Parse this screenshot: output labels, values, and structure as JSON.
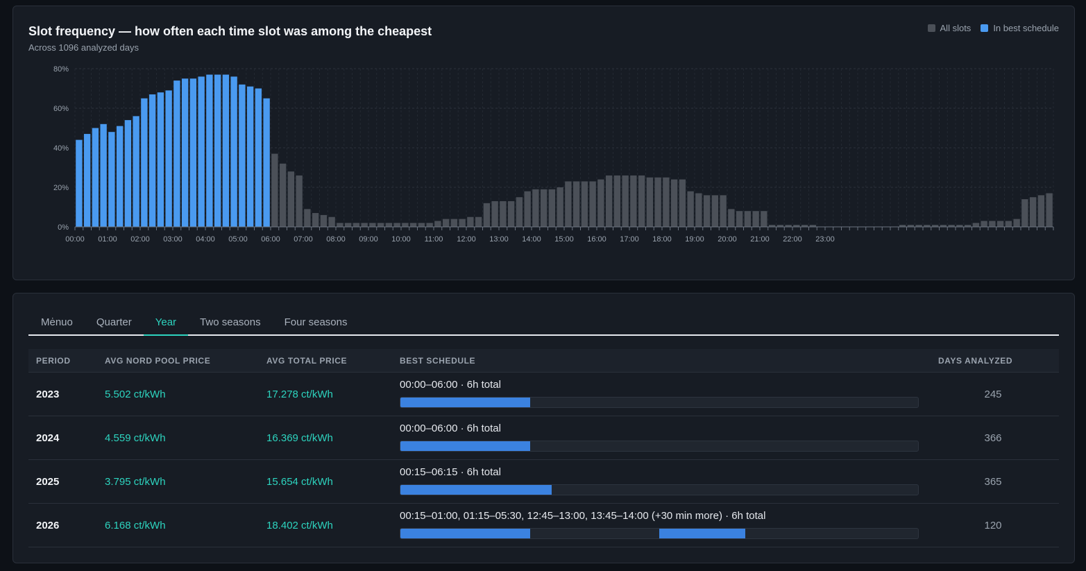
{
  "chart_card": {
    "title": "Slot frequency — how often each time slot was among the cheapest",
    "subtitle": "Across 1096 analyzed days",
    "legend": [
      {
        "label": "All slots",
        "color": "#4b5058"
      },
      {
        "label": "In best schedule",
        "color": "#4a9af0"
      }
    ]
  },
  "chart_data": {
    "type": "bar",
    "title": "Slot frequency — how often each time slot was among the cheapest",
    "subtitle": "Across 1096 analyzed days",
    "ylim": [
      0,
      80
    ],
    "y_ticks": [
      "0%",
      "20%",
      "40%",
      "60%",
      "80%"
    ],
    "x_ticks": [
      "00:00",
      "01:00",
      "02:00",
      "03:00",
      "04:00",
      "05:00",
      "06:00",
      "07:00",
      "08:00",
      "09:00",
      "10:00",
      "11:00",
      "12:00",
      "13:00",
      "14:00",
      "15:00",
      "16:00",
      "17:00",
      "18:00",
      "19:00",
      "20:00",
      "21:00",
      "22:00",
      "23:00"
    ],
    "slot_minutes": 15,
    "grid": true,
    "legend_position": "top-right",
    "best_schedule_slots": [
      0,
      24
    ],
    "values": [
      44,
      47,
      50,
      52,
      48,
      51,
      54,
      56,
      65,
      67,
      68,
      69,
      74,
      75,
      75,
      76,
      77,
      77,
      77,
      76,
      72,
      71,
      70,
      65,
      37,
      32,
      28,
      26,
      9,
      7,
      6,
      5,
      2,
      2,
      2,
      2,
      2,
      2,
      2,
      2,
      2,
      2,
      2,
      2,
      3,
      4,
      4,
      4,
      5,
      5,
      12,
      13,
      13,
      13,
      15,
      18,
      19,
      19,
      19,
      20,
      23,
      23,
      23,
      23,
      24,
      26,
      26,
      26,
      26,
      26,
      25,
      25,
      25,
      24,
      24,
      18,
      17,
      16,
      16,
      16,
      9,
      8,
      8,
      8,
      8,
      1,
      1,
      1,
      1,
      1,
      1,
      0,
      0,
      0,
      0,
      0,
      0,
      0,
      0,
      0,
      0,
      1,
      1,
      1,
      1,
      1,
      1,
      1,
      1,
      1,
      2,
      3,
      3,
      3,
      3,
      4,
      14,
      15,
      16,
      17
    ]
  },
  "tabs": [
    "Mėnuo",
    "Quarter",
    "Year",
    "Two seasons",
    "Four seasons"
  ],
  "active_tab": "Year",
  "table": {
    "headers": {
      "period": "PERIOD",
      "nord": "AVG NORD POOL PRICE",
      "total": "AVG TOTAL PRICE",
      "schedule": "BEST SCHEDULE",
      "days": "DAYS ANALYZED"
    },
    "rows": [
      {
        "period": "2023",
        "nord": "5.502 ct/kWh",
        "total": "17.278 ct/kWh",
        "schedule_text": "00:00–06:00 · 6h total",
        "segments": [
          [
            0,
            0.25
          ]
        ],
        "days": "245"
      },
      {
        "period": "2024",
        "nord": "4.559 ct/kWh",
        "total": "16.369 ct/kWh",
        "schedule_text": "00:00–06:00 · 6h total",
        "segments": [
          [
            0,
            0.25
          ]
        ],
        "days": "366"
      },
      {
        "period": "2025",
        "nord": "3.795 ct/kWh",
        "total": "15.654 ct/kWh",
        "schedule_text": "00:15–06:15 · 6h total",
        "segments": [
          [
            0,
            0.292
          ]
        ],
        "days": "365"
      },
      {
        "period": "2026",
        "nord": "6.168 ct/kWh",
        "total": "18.402 ct/kWh",
        "schedule_text": "00:15–01:00, 01:15–05:30, 12:45–13:00, 13:45–14:00 (+30 min more) · 6h total",
        "segments": [
          [
            0,
            0.25
          ],
          [
            0.5,
            0.666
          ]
        ],
        "days": "120"
      }
    ]
  },
  "colors": {
    "accent": "#2dd4bf",
    "bar_best": "#4a9af0",
    "bar_all": "#4b5058",
    "schedule_bar": "#3b82e0"
  }
}
